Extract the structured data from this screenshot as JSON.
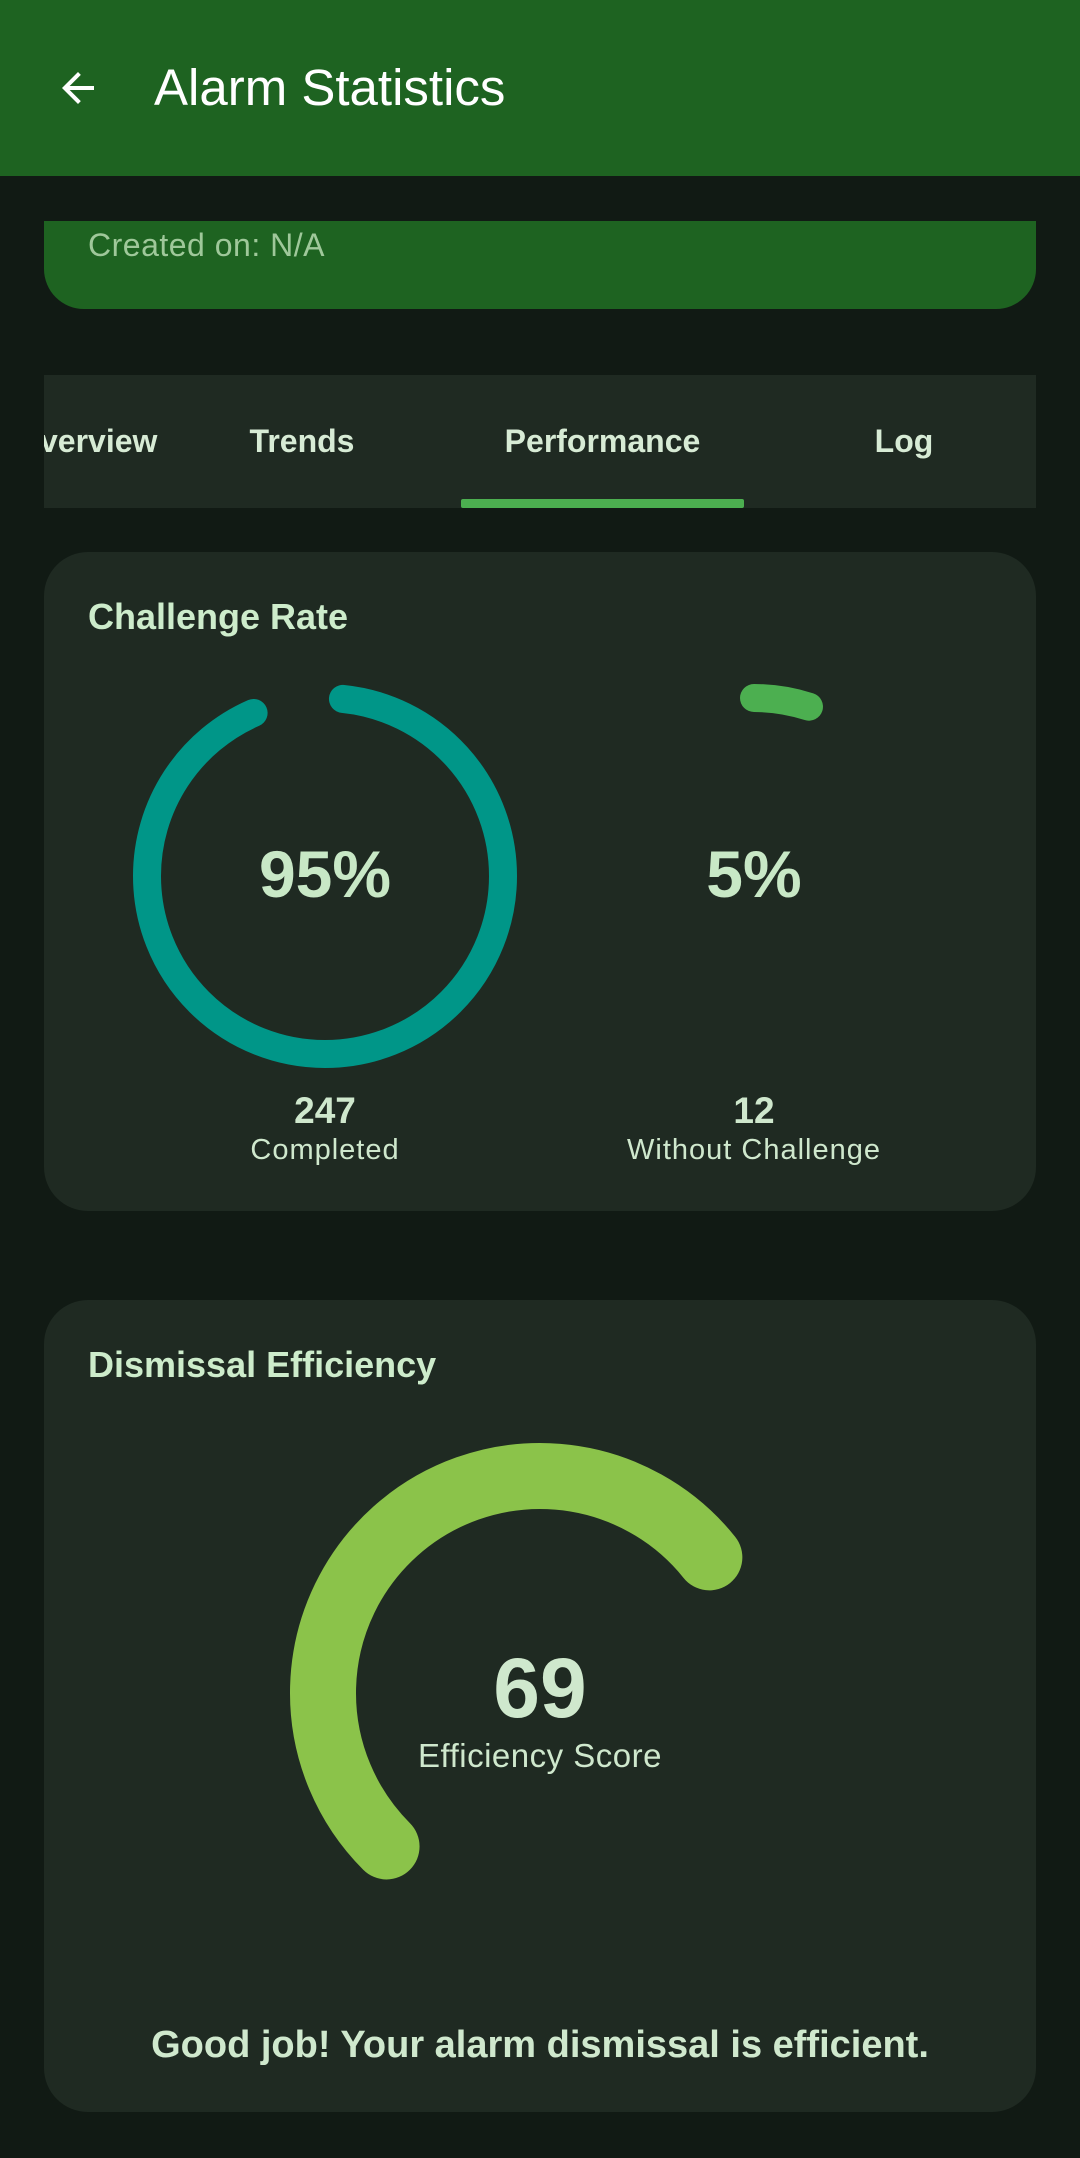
{
  "app_bar": {
    "title": "Alarm Statistics",
    "back_icon": "arrow-left-icon"
  },
  "info": {
    "created_text": "Created on: N/A"
  },
  "tabs": [
    {
      "label": "verview",
      "selected": false
    },
    {
      "label": "Trends",
      "selected": false
    },
    {
      "label": "Performance",
      "selected": true
    },
    {
      "label": "Log",
      "selected": false
    }
  ],
  "challenge_card": {
    "title": "Challenge Rate",
    "completed": {
      "percent_label": "95%",
      "percent": 95,
      "count": "247",
      "label": "Completed",
      "color": "#009688"
    },
    "without": {
      "percent_label": "5%",
      "percent": 5,
      "count": "12",
      "label": "Without Challenge",
      "color": "#4caf50"
    }
  },
  "efficiency_card": {
    "title": "Dismissal Efficiency",
    "score": "69",
    "score_value": 69,
    "score_label": "Efficiency Score",
    "gauge_color": "#8bc34a",
    "message": "Good job! Your alarm dismissal is efficient."
  },
  "colors": {
    "app_bar": "#1e6321",
    "background": "#111a14",
    "card": "#1f2a22",
    "accent": "#4caf50"
  }
}
